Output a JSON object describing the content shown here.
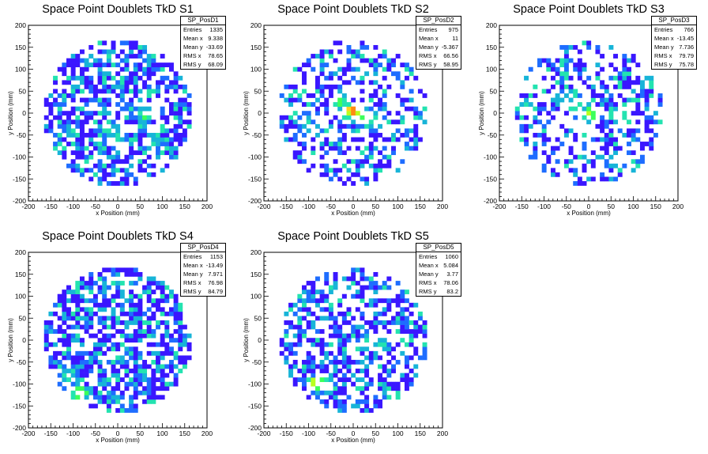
{
  "chart_data": [
    {
      "type": "heatmap",
      "title": "Space Point Doublets TkD S1",
      "xlabel": "x Position (mm)",
      "ylabel": "y Position (mm)",
      "xlim": [
        -200,
        200
      ],
      "ylim": [
        -200,
        200
      ],
      "xticks": [
        "-200",
        "-150",
        "-100",
        "-50",
        "0",
        "50",
        "100",
        "150",
        "200"
      ],
      "yticks": [
        "-200",
        "-150",
        "-100",
        "-50",
        "0",
        "50",
        "100",
        "150",
        "200"
      ],
      "stats": {
        "name": "SP_PosD1",
        "rows": [
          [
            "Entries",
            "1335"
          ],
          [
            "Mean x",
            "9.338"
          ],
          [
            "Mean y",
            "-33.69"
          ],
          [
            "RMS x",
            "78.65"
          ],
          [
            "RMS y",
            "68.09"
          ]
        ]
      },
      "hotspots": [
        {
          "x": 60,
          "y": -5,
          "w": 4
        },
        {
          "x": 0,
          "y": -60,
          "w": 3
        },
        {
          "x": -20,
          "y": -40,
          "w": 2
        },
        {
          "x": 80,
          "y": -70,
          "w": 2
        }
      ],
      "density": 0.62
    },
    {
      "type": "heatmap",
      "title": "Space Point Doublets TkD S2",
      "xlabel": "x Position (mm)",
      "ylabel": "y Position (mm)",
      "xlim": [
        -200,
        200
      ],
      "ylim": [
        -200,
        200
      ],
      "xticks": [
        "-200",
        "-150",
        "-100",
        "-50",
        "0",
        "50",
        "100",
        "150",
        "200"
      ],
      "yticks": [
        "-200",
        "-150",
        "-100",
        "-50",
        "0",
        "50",
        "100",
        "150",
        "200"
      ],
      "stats": {
        "name": "SP_PosD2",
        "rows": [
          [
            "Entries",
            "975"
          ],
          [
            "Mean x",
            "11"
          ],
          [
            "Mean y",
            "-5.367"
          ],
          [
            "RMS x",
            "66.56"
          ],
          [
            "RMS y",
            "58.95"
          ]
        ]
      },
      "hotspots": [
        {
          "x": 0,
          "y": 5,
          "w": 8
        },
        {
          "x": 30,
          "y": -10,
          "w": 5
        },
        {
          "x": -30,
          "y": 25,
          "w": 4
        },
        {
          "x": 50,
          "y": -20,
          "w": 3
        }
      ],
      "density": 0.42
    },
    {
      "type": "heatmap",
      "title": "Space Point Doublets TkD S3",
      "xlabel": "x Position (mm)",
      "ylabel": "y Position (mm)",
      "xlim": [
        -200,
        200
      ],
      "ylim": [
        -200,
        200
      ],
      "xticks": [
        "-200",
        "-150",
        "-100",
        "-50",
        "0",
        "50",
        "100",
        "150",
        "200"
      ],
      "yticks": [
        "-200",
        "-150",
        "-100",
        "-50",
        "0",
        "50",
        "100",
        "150",
        "200"
      ],
      "stats": {
        "name": "SP_PosD3",
        "rows": [
          [
            "Entries",
            "766"
          ],
          [
            "Mean x",
            "-13.45"
          ],
          [
            "Mean y",
            "7.736"
          ],
          [
            "RMS x",
            "79.79"
          ],
          [
            "RMS y",
            "75.78"
          ]
        ]
      },
      "hotspots": [
        {
          "x": 0,
          "y": 0,
          "w": 5
        },
        {
          "x": -30,
          "y": 20,
          "w": 3
        },
        {
          "x": -60,
          "y": 35,
          "w": 2
        }
      ],
      "density": 0.4
    },
    {
      "type": "heatmap",
      "title": "Space Point Doublets TkD S4",
      "xlabel": "x Position (mm)",
      "ylabel": "y Position (mm)",
      "xlim": [
        -200,
        200
      ],
      "ylim": [
        -200,
        200
      ],
      "xticks": [
        "-200",
        "-150",
        "-100",
        "-50",
        "0",
        "50",
        "100",
        "150",
        "200"
      ],
      "yticks": [
        "-200",
        "-150",
        "-100",
        "-50",
        "0",
        "50",
        "100",
        "150",
        "200"
      ],
      "stats": {
        "name": "SP_PosD4",
        "rows": [
          [
            "Entries",
            "1153"
          ],
          [
            "Mean x",
            "-13.49"
          ],
          [
            "Mean y",
            "7.971"
          ],
          [
            "RMS x",
            "76.98"
          ],
          [
            "RMS y",
            "84.79"
          ]
        ]
      },
      "hotspots": [
        {
          "x": -85,
          "y": -120,
          "w": 6
        },
        {
          "x": -110,
          "y": -80,
          "w": 3
        }
      ],
      "density": 0.62
    },
    {
      "type": "heatmap",
      "title": "Space Point Doublets TkD S5",
      "xlabel": "x Position (mm)",
      "ylabel": "y Position (mm)",
      "xlim": [
        -200,
        200
      ],
      "ylim": [
        -200,
        200
      ],
      "xticks": [
        "-200",
        "-150",
        "-100",
        "-50",
        "0",
        "50",
        "100",
        "150",
        "200"
      ],
      "yticks": [
        "-200",
        "-150",
        "-100",
        "-50",
        "0",
        "50",
        "100",
        "150",
        "200"
      ],
      "stats": {
        "name": "SP_PosD5",
        "rows": [
          [
            "Entries",
            "1060"
          ],
          [
            "Mean x",
            "5.084"
          ],
          [
            "Mean y",
            "3.77"
          ],
          [
            "RMS x",
            "78.06"
          ],
          [
            "RMS y",
            "83.2"
          ]
        ]
      },
      "hotspots": [
        {
          "x": -85,
          "y": -100,
          "w": 6
        },
        {
          "x": -70,
          "y": -95,
          "w": 4
        },
        {
          "x": 60,
          "y": -15,
          "w": 2
        }
      ],
      "density": 0.55
    }
  ]
}
